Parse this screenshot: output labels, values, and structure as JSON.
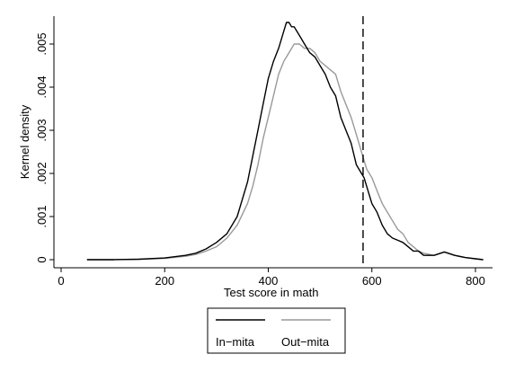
{
  "chart_data": {
    "type": "line",
    "title": "",
    "xlabel": "Test score in math",
    "ylabel": "Kernel density",
    "xlim": [
      0,
      820
    ],
    "ylim": [
      0,
      0.0057
    ],
    "xticks": [
      0,
      200,
      400,
      600,
      800
    ],
    "xtick_labels": [
      "0",
      "200",
      "400",
      "600",
      "800"
    ],
    "yticks": [
      0,
      0.001,
      0.002,
      0.003,
      0.004,
      0.005
    ],
    "ytick_labels": [
      "0",
      ".001",
      ".002",
      ".003",
      ".004",
      ".005"
    ],
    "grid": false,
    "legend_position": "bottom-center",
    "reference_line": {
      "x": 583,
      "style": "dashed",
      "color": "#000000"
    },
    "series": [
      {
        "name": "In−mita",
        "color": "#000000",
        "points": [
          [
            50,
            0
          ],
          [
            100,
            0
          ],
          [
            150,
            1e-05
          ],
          [
            200,
            4e-05
          ],
          [
            240,
            0.0001
          ],
          [
            260,
            0.00015
          ],
          [
            280,
            0.00025
          ],
          [
            300,
            0.0004
          ],
          [
            320,
            0.0006
          ],
          [
            340,
            0.001
          ],
          [
            360,
            0.0018
          ],
          [
            370,
            0.0024
          ],
          [
            380,
            0.003
          ],
          [
            390,
            0.0036
          ],
          [
            400,
            0.0042
          ],
          [
            410,
            0.0046
          ],
          [
            420,
            0.0049
          ],
          [
            430,
            0.0053
          ],
          [
            435,
            0.0055
          ],
          [
            440,
            0.0055
          ],
          [
            445,
            0.0054
          ],
          [
            450,
            0.0054
          ],
          [
            455,
            0.0053
          ],
          [
            460,
            0.0052
          ],
          [
            470,
            0.005
          ],
          [
            480,
            0.0048
          ],
          [
            490,
            0.0047
          ],
          [
            500,
            0.0045
          ],
          [
            510,
            0.0043
          ],
          [
            520,
            0.004
          ],
          [
            530,
            0.0038
          ],
          [
            540,
            0.0033
          ],
          [
            550,
            0.003
          ],
          [
            560,
            0.0027
          ],
          [
            570,
            0.0022
          ],
          [
            580,
            0.002
          ],
          [
            585,
            0.0019
          ],
          [
            590,
            0.0017
          ],
          [
            600,
            0.0013
          ],
          [
            610,
            0.0011
          ],
          [
            620,
            0.0008
          ],
          [
            630,
            0.0006
          ],
          [
            640,
            0.0005
          ],
          [
            650,
            0.00045
          ],
          [
            660,
            0.0004
          ],
          [
            670,
            0.0003
          ],
          [
            680,
            0.0002
          ],
          [
            690,
            0.0002
          ],
          [
            700,
            0.0001
          ],
          [
            720,
            0.0001
          ],
          [
            740,
            0.00018
          ],
          [
            760,
            0.0001
          ],
          [
            780,
            5e-05
          ],
          [
            800,
            2e-05
          ],
          [
            815,
            0
          ]
        ]
      },
      {
        "name": "Out−mita",
        "color": "#999999",
        "points": [
          [
            50,
            0
          ],
          [
            100,
            0
          ],
          [
            150,
            1e-05
          ],
          [
            200,
            3e-05
          ],
          [
            240,
            8e-05
          ],
          [
            260,
            0.00012
          ],
          [
            280,
            0.0002
          ],
          [
            300,
            0.0003
          ],
          [
            320,
            0.0005
          ],
          [
            340,
            0.0008
          ],
          [
            360,
            0.0013
          ],
          [
            370,
            0.0017
          ],
          [
            380,
            0.0022
          ],
          [
            390,
            0.0028
          ],
          [
            400,
            0.0033
          ],
          [
            410,
            0.0038
          ],
          [
            420,
            0.0043
          ],
          [
            430,
            0.0046
          ],
          [
            440,
            0.0048
          ],
          [
            450,
            0.005
          ],
          [
            460,
            0.005
          ],
          [
            470,
            0.0049
          ],
          [
            480,
            0.0049
          ],
          [
            490,
            0.0048
          ],
          [
            500,
            0.0046
          ],
          [
            510,
            0.0045
          ],
          [
            520,
            0.0044
          ],
          [
            530,
            0.0043
          ],
          [
            540,
            0.0039
          ],
          [
            550,
            0.0036
          ],
          [
            560,
            0.0033
          ],
          [
            570,
            0.0029
          ],
          [
            580,
            0.0025
          ],
          [
            590,
            0.0021
          ],
          [
            600,
            0.0019
          ],
          [
            610,
            0.0016
          ],
          [
            620,
            0.0013
          ],
          [
            630,
            0.0011
          ],
          [
            640,
            0.0009
          ],
          [
            650,
            0.0007
          ],
          [
            660,
            0.0006
          ],
          [
            670,
            0.0004
          ],
          [
            680,
            0.0003
          ],
          [
            690,
            0.0002
          ],
          [
            700,
            0.00015
          ],
          [
            720,
            0.0001
          ],
          [
            740,
            0.00018
          ],
          [
            760,
            0.0001
          ],
          [
            780,
            5e-05
          ],
          [
            800,
            2e-05
          ],
          [
            815,
            0
          ]
        ]
      }
    ]
  }
}
